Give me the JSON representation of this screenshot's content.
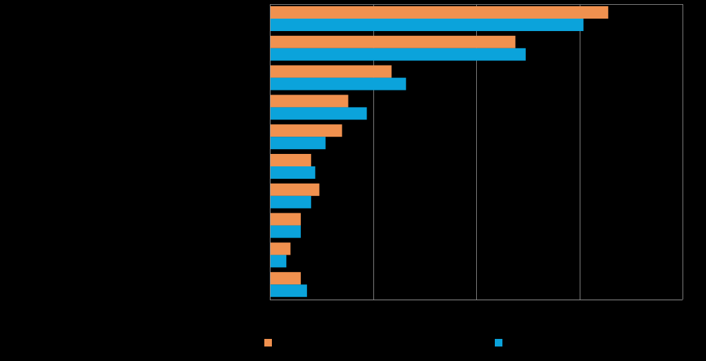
{
  "colors": {
    "background": "#000000",
    "series_a": "#F0914F",
    "series_b": "#0BA3DB",
    "grid": "#7f7f7f",
    "axis": "#8c8c8c"
  },
  "legend": {
    "series_a_label": "",
    "series_b_label": ""
  },
  "chart_data": {
    "type": "bar",
    "orientation": "horizontal",
    "categories": [
      "",
      "",
      "",
      "",
      "",
      "",
      "",
      "",
      "",
      ""
    ],
    "series": [
      {
        "values": [
          16.4,
          11.9,
          5.9,
          3.8,
          3.5,
          2.0,
          2.4,
          1.5,
          1.0,
          1.5
        ]
      },
      {
        "values": [
          15.2,
          12.4,
          6.6,
          4.7,
          2.7,
          2.2,
          2.0,
          1.5,
          0.8,
          1.8
        ]
      }
    ],
    "xlim": [
      0,
      20
    ],
    "x_gridlines": [
      5,
      10,
      15,
      20
    ],
    "grid": true,
    "tick_labels_visible": false,
    "title": "",
    "xlabel": "",
    "ylabel": "",
    "legend_position": "bottom"
  }
}
